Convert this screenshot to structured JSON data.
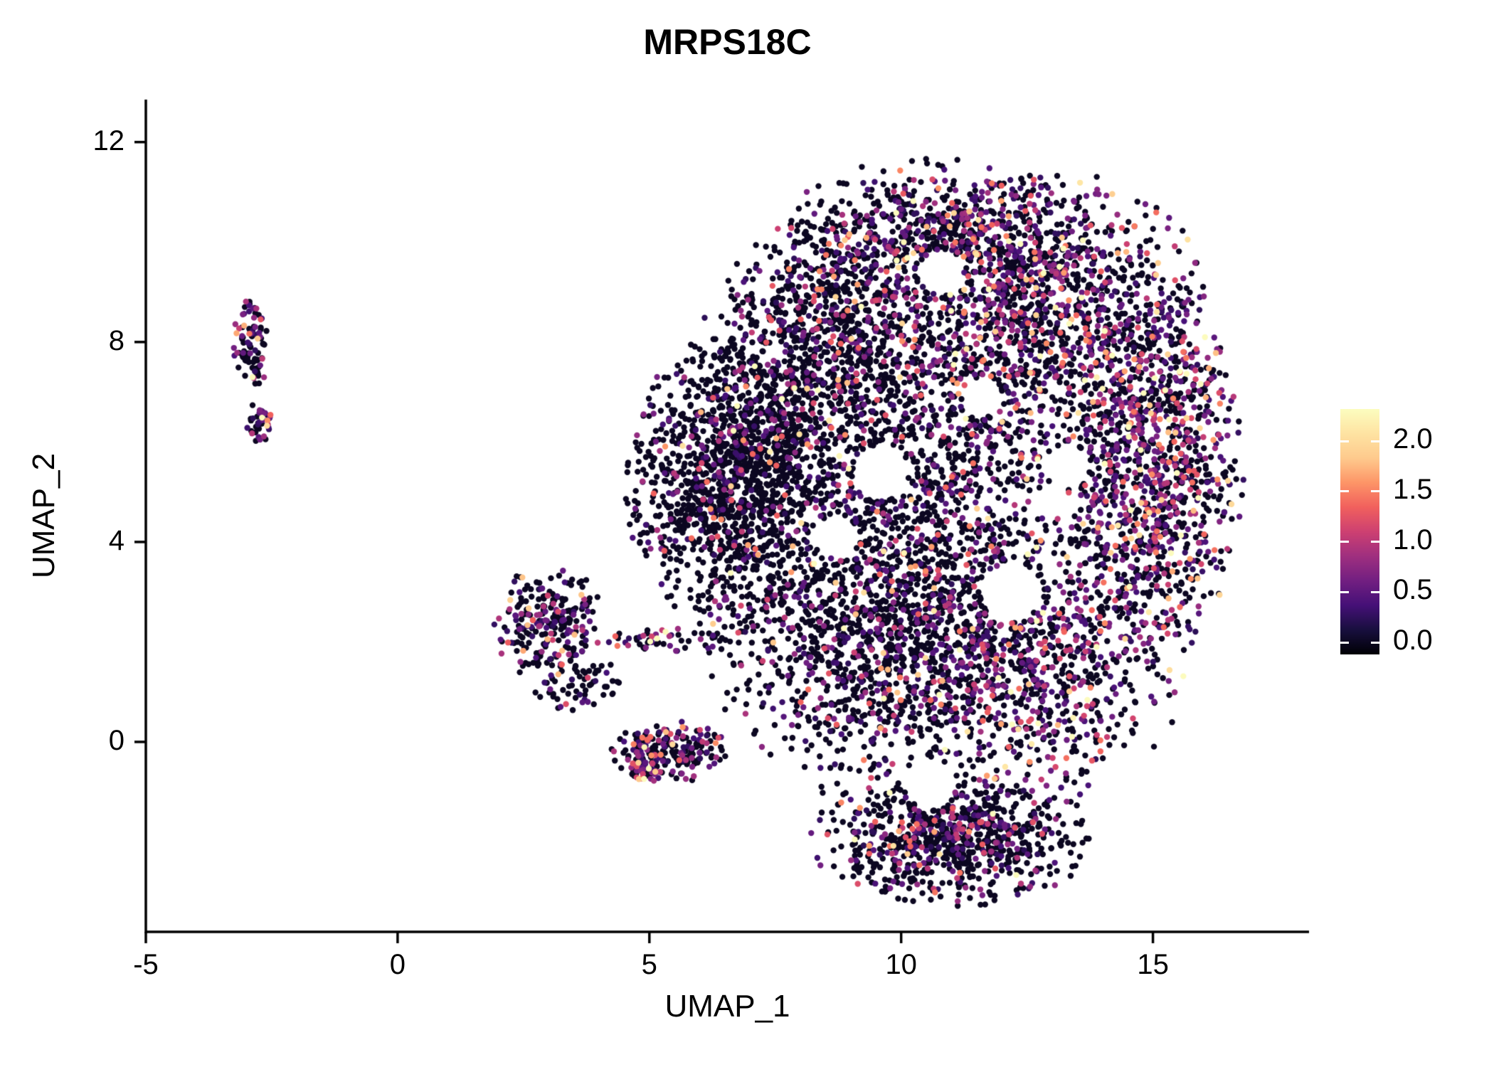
{
  "chart_data": {
    "type": "scatter",
    "title": "MRPS18C",
    "xlabel": "UMAP_1",
    "ylabel": "UMAP_2",
    "xlim": [
      -5,
      18.1
    ],
    "ylim": [
      -3.8,
      12.85
    ],
    "x_ticks": [
      {
        "value": -5,
        "label": "-5"
      },
      {
        "value": 0,
        "label": "0"
      },
      {
        "value": 5,
        "label": "5"
      },
      {
        "value": 10,
        "label": "10"
      },
      {
        "value": 15,
        "label": "15"
      }
    ],
    "y_ticks": [
      {
        "value": 0,
        "label": "0"
      },
      {
        "value": 4,
        "label": "4"
      },
      {
        "value": 8,
        "label": "8"
      },
      {
        "value": 12,
        "label": "12"
      }
    ],
    "grid": false,
    "legend_position": "right",
    "point_radius_px": 4.2,
    "seed": 1337,
    "colorbar": {
      "ticks": [
        {
          "value": 2.0,
          "label": "2.0"
        },
        {
          "value": 1.5,
          "label": "1.5"
        },
        {
          "value": 1.0,
          "label": "1.0"
        },
        {
          "value": 0.5,
          "label": "0.5"
        },
        {
          "value": 0.0,
          "label": "0.0"
        }
      ],
      "range": [
        -0.12,
        2.32
      ],
      "colormap": "magma",
      "stops": [
        "#000004",
        "#180f3e",
        "#451077",
        "#721f81",
        "#9f2f7f",
        "#cd4071",
        "#f1605d",
        "#fd9567",
        "#feca8d",
        "#fee3a2",
        "#fcfdbf"
      ]
    },
    "clusters": [
      {
        "name": "left-satellite-upper",
        "cx": -2.92,
        "cy": 7.9,
        "sx": 0.17,
        "sy": 0.45,
        "n": 95,
        "zero_frac": 0.55,
        "expr_scale": 0.65,
        "trunc": 2.2
      },
      {
        "name": "left-satellite-lower",
        "cx": -2.75,
        "cy": 6.4,
        "sx": 0.13,
        "sy": 0.22,
        "n": 40,
        "zero_frac": 0.5,
        "expr_scale": 0.7,
        "trunc": 2.0
      },
      {
        "name": "mid-satellite-main",
        "cx": 3.0,
        "cy": 2.4,
        "sx": 0.5,
        "sy": 0.55,
        "n": 230,
        "zero_frac": 0.62,
        "expr_scale": 0.6,
        "trunc": 2.2
      },
      {
        "name": "mid-satellite-tail",
        "cx": 3.5,
        "cy": 1.2,
        "sx": 0.45,
        "sy": 0.3,
        "n": 70,
        "zero_frac": 0.68,
        "expr_scale": 0.55,
        "trunc": 2.0
      },
      {
        "name": "mid-satellite-arm",
        "cx": 5.2,
        "cy": 2.05,
        "sx": 0.75,
        "sy": 0.12,
        "n": 55,
        "zero_frac": 0.6,
        "expr_scale": 0.6,
        "trunc": 2.0
      },
      {
        "name": "origin-satellite",
        "cx": 5.4,
        "cy": -0.2,
        "sx": 0.55,
        "sy": 0.28,
        "n": 210,
        "zero_frac": 0.62,
        "expr_scale": 0.6,
        "trunc": 2.2
      },
      {
        "name": "origin-satellite-hotspot",
        "cx": 4.85,
        "cy": -0.55,
        "sx": 0.16,
        "sy": 0.13,
        "n": 40,
        "zero_frac": 0.3,
        "expr_scale": 0.85,
        "trunc": 2.0
      },
      {
        "name": "main-left-wedge",
        "cx": 6.6,
        "cy": 5.2,
        "sx": 0.95,
        "sy": 1.35,
        "n": 1300,
        "zero_frac": 0.82,
        "expr_scale": 0.5,
        "trunc": 2.2
      },
      {
        "name": "main-upper-left",
        "cx": 8.4,
        "cy": 7.8,
        "sx": 1.1,
        "sy": 1.2,
        "n": 900,
        "zero_frac": 0.74,
        "expr_scale": 0.5,
        "trunc": 2.2
      },
      {
        "name": "main-top-arc",
        "cx": 10.6,
        "cy": 10.1,
        "sx": 1.5,
        "sy": 0.75,
        "n": 700,
        "zero_frac": 0.66,
        "expr_scale": 0.55,
        "trunc": 2.1
      },
      {
        "name": "main-upper-right",
        "cx": 12.9,
        "cy": 8.6,
        "sx": 1.5,
        "sy": 1.3,
        "n": 1100,
        "zero_frac": 0.55,
        "expr_scale": 0.6,
        "trunc": 2.2
      },
      {
        "name": "main-right",
        "cx": 15.0,
        "cy": 5.4,
        "sx": 0.9,
        "sy": 1.9,
        "n": 1100,
        "zero_frac": 0.48,
        "expr_scale": 0.6,
        "trunc": 2.0
      },
      {
        "name": "main-center",
        "cx": 10.6,
        "cy": 5.6,
        "sx": 1.6,
        "sy": 1.6,
        "n": 900,
        "zero_frac": 0.7,
        "expr_scale": 0.55,
        "trunc": 2.2
      },
      {
        "name": "main-lower-left",
        "cx": 9.3,
        "cy": 2.3,
        "sx": 1.5,
        "sy": 1.6,
        "n": 1150,
        "zero_frac": 0.78,
        "expr_scale": 0.5,
        "trunc": 2.2
      },
      {
        "name": "main-lower-right",
        "cx": 12.4,
        "cy": 1.6,
        "sx": 1.5,
        "sy": 1.3,
        "n": 900,
        "zero_frac": 0.6,
        "expr_scale": 0.6,
        "trunc": 2.2
      },
      {
        "name": "bottom-lobe",
        "cx": 11.0,
        "cy": -1.9,
        "sx": 1.3,
        "sy": 0.65,
        "n": 800,
        "zero_frac": 0.72,
        "expr_scale": 0.55,
        "trunc": 2.2
      }
    ],
    "holes": [
      [
        9.6,
        5.4,
        0.55
      ],
      [
        12.2,
        3.0,
        0.6
      ],
      [
        10.8,
        9.4,
        0.45
      ],
      [
        8.7,
        4.1,
        0.4
      ],
      [
        13.3,
        5.5,
        0.45
      ],
      [
        11.6,
        6.9,
        0.4
      ],
      [
        10.6,
        -0.85,
        0.5
      ]
    ]
  }
}
